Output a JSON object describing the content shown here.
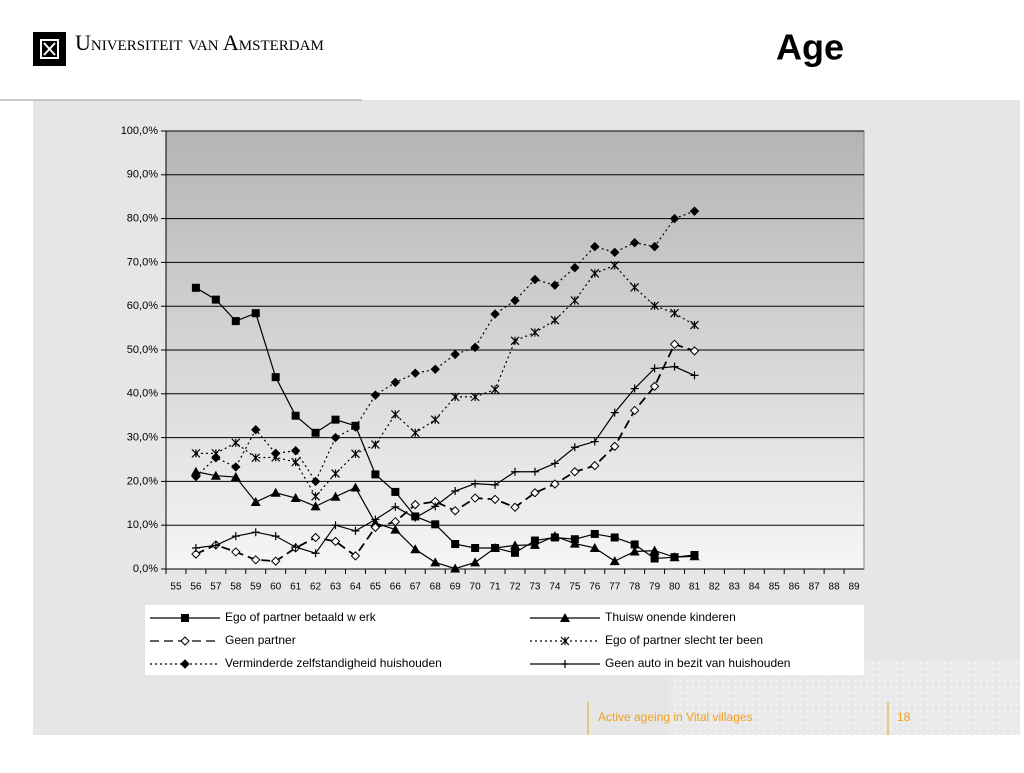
{
  "header": {
    "logo_text": "Universiteit van Amsterdam",
    "title": "Age"
  },
  "footer": {
    "text": "Active ageing in Vital villages",
    "page": "18"
  },
  "chart_data": {
    "type": "line",
    "categories": [
      "55",
      "56",
      "57",
      "58",
      "59",
      "60",
      "61",
      "62",
      "63",
      "64",
      "65",
      "66",
      "67",
      "68",
      "69",
      "70",
      "71",
      "72",
      "73",
      "74",
      "75",
      "76",
      "77",
      "78",
      "79",
      "80",
      "81",
      "82",
      "83",
      "84",
      "85",
      "86",
      "87",
      "88",
      "89"
    ],
    "ylim": [
      0,
      100
    ],
    "yticks": [
      {
        "value": 0,
        "label": "0,0%"
      },
      {
        "value": 10,
        "label": "10,0%"
      },
      {
        "value": 20,
        "label": "20,0%"
      },
      {
        "value": 30,
        "label": "30,0%"
      },
      {
        "value": 40,
        "label": "40,0%"
      },
      {
        "value": 50,
        "label": "50,0%"
      },
      {
        "value": 60,
        "label": "60,0%"
      },
      {
        "value": 70,
        "label": "70,0%"
      },
      {
        "value": 80,
        "label": "80,0%"
      },
      {
        "value": 90,
        "label": "90,0%"
      },
      {
        "value": 100,
        "label": "100,0%"
      }
    ],
    "grid": true,
    "series": [
      {
        "name": "Ego of partner betaald w erk",
        "color": "#000000",
        "dash": "solid",
        "marker": "square",
        "values": [
          null,
          64.2,
          61.5,
          56.6,
          58.4,
          43.8,
          35.0,
          31.1,
          34.1,
          32.7,
          21.6,
          17.6,
          12.0,
          10.2,
          5.7,
          4.8,
          4.8,
          3.7,
          6.5,
          7.2,
          6.8,
          8.0,
          7.2,
          5.6,
          2.4,
          2.7,
          3.2,
          null,
          null,
          null,
          null,
          null,
          null,
          null,
          null
        ]
      },
      {
        "name": "Thuisw onende kinderen",
        "color": "#000000",
        "dash": "solid",
        "marker": "triangle",
        "values": [
          null,
          22.2,
          21.3,
          21.0,
          15.3,
          17.4,
          16.2,
          14.3,
          16.5,
          18.6,
          10.5,
          9.0,
          4.5,
          1.5,
          0.1,
          1.5,
          4.8,
          5.4,
          5.5,
          7.5,
          5.8,
          4.8,
          1.8,
          4.0,
          4.2,
          2.7,
          2.9,
          null,
          null,
          null,
          null,
          null,
          null,
          null,
          null
        ]
      },
      {
        "name": "Geen partner",
        "color": "#000000",
        "dash": "dashed",
        "marker": "open-diamond",
        "values": [
          null,
          3.4,
          5.5,
          3.9,
          2.1,
          1.8,
          4.8,
          7.2,
          6.3,
          3.0,
          9.5,
          10.8,
          14.7,
          15.4,
          13.3,
          16.2,
          15.9,
          14.1,
          17.4,
          19.4,
          22.2,
          23.6,
          28.0,
          36.2,
          41.7,
          51.3,
          49.8,
          null,
          null,
          null,
          null,
          null,
          null,
          null,
          null
        ]
      },
      {
        "name": "Ego of partner slecht ter been",
        "color": "#000000",
        "dash": "dotted",
        "marker": "star",
        "values": [
          null,
          26.4,
          26.4,
          28.8,
          25.4,
          25.5,
          24.4,
          16.6,
          21.8,
          26.3,
          28.4,
          35.3,
          31.1,
          34.1,
          39.3,
          39.3,
          41.0,
          52.1,
          54.0,
          56.8,
          61.3,
          67.5,
          69.3,
          64.3,
          60.1,
          58.4,
          55.7,
          null,
          null,
          null,
          null,
          null,
          null,
          null,
          null
        ]
      },
      {
        "name": "Verminderde zelfstandigheid huishouden",
        "color": "#000000",
        "dash": "dotted",
        "marker": "diamond",
        "values": [
          null,
          21.1,
          25.4,
          23.3,
          31.8,
          26.4,
          27.0,
          20.0,
          30.0,
          32.4,
          39.7,
          42.6,
          44.7,
          45.6,
          49.0,
          50.6,
          58.2,
          61.3,
          66.1,
          64.8,
          68.8,
          73.6,
          72.3,
          74.5,
          73.6,
          80.0,
          81.7,
          null,
          null,
          null,
          null,
          null,
          null,
          null,
          null
        ]
      },
      {
        "name": "Geen auto in bezit van huishouden",
        "color": "#000000",
        "dash": "solid",
        "marker": "plus",
        "values": [
          null,
          4.8,
          5.4,
          7.5,
          8.4,
          7.5,
          5.0,
          3.6,
          10.0,
          8.7,
          11.3,
          14.2,
          11.7,
          14.3,
          17.8,
          19.5,
          19.2,
          22.2,
          22.2,
          24.1,
          27.8,
          29.1,
          35.7,
          41.2,
          45.8,
          46.2,
          44.2,
          null,
          null,
          null,
          null,
          null,
          null,
          null,
          null
        ]
      }
    ]
  }
}
